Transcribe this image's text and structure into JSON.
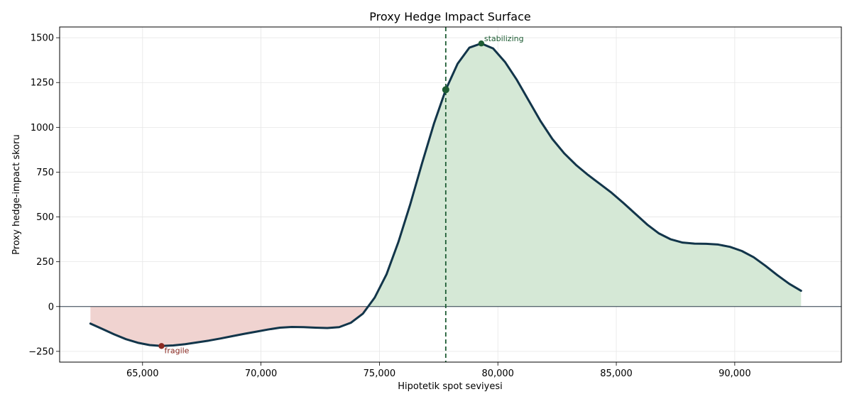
{
  "chart_data": {
    "type": "line",
    "title": "Proxy Hedge Impact Surface",
    "xlabel": "Hipotetik spot seviyesi",
    "ylabel": "Proxy hedge-impact skoru",
    "xlim": [
      61500,
      94500
    ],
    "ylim": [
      -310,
      1560
    ],
    "xticks": [
      65000,
      70000,
      75000,
      80000,
      85000,
      90000
    ],
    "xtick_labels": [
      "65,000",
      "70,000",
      "75,000",
      "80,000",
      "85,000",
      "90,000"
    ],
    "yticks": [
      -250,
      0,
      250,
      500,
      750,
      1000,
      1250,
      1500
    ],
    "ytick_labels": [
      "−250",
      "0",
      "250",
      "500",
      "750",
      "1000",
      "1250",
      "1500"
    ],
    "grid": true,
    "series": [
      {
        "x": [
          62800,
          63300,
          63800,
          64300,
          64800,
          65300,
          65800,
          66300,
          66800,
          67300,
          67800,
          68300,
          68800,
          69300,
          69800,
          70300,
          70800,
          71300,
          71800,
          72300,
          72800,
          73300,
          73800,
          74300,
          74800,
          75300,
          75800,
          76300,
          76800,
          77300,
          77800,
          78300,
          78800,
          79300,
          79800,
          80300,
          80800,
          81300,
          81800,
          82300,
          82800,
          83300,
          83800,
          84300,
          84800,
          85300,
          85800,
          86300,
          86800,
          87300,
          87800,
          88300,
          88800,
          89300,
          89800,
          90300,
          90800,
          91300,
          91800,
          92300,
          92800
        ],
        "y": [
          -95,
          -125,
          -155,
          -182,
          -202,
          -215,
          -220,
          -217,
          -210,
          -200,
          -190,
          -178,
          -165,
          -152,
          -140,
          -128,
          -118,
          -114,
          -115,
          -118,
          -120,
          -115,
          -90,
          -40,
          50,
          180,
          360,
          570,
          800,
          1020,
          1210,
          1355,
          1445,
          1468,
          1440,
          1365,
          1265,
          1150,
          1035,
          935,
          855,
          790,
          735,
          685,
          635,
          578,
          518,
          458,
          408,
          375,
          357,
          351,
          350,
          346,
          333,
          310,
          275,
          227,
          175,
          127,
          88
        ]
      }
    ],
    "fill_positive_color": "#d5e8d6",
    "fill_negative_color": "#f0d3d0",
    "line_color": "#12354a",
    "zero_line_color": "#2a3b4a",
    "spot_marker": {
      "x": 77800,
      "y": 1210,
      "color": "#1d5c33"
    },
    "annotations": [
      {
        "label": "stabilizing",
        "x": 79300,
        "y": 1468,
        "color": "#1d5c33"
      },
      {
        "label": "fragile",
        "x": 65800,
        "y": -220,
        "color": "#8b2a22"
      }
    ]
  }
}
